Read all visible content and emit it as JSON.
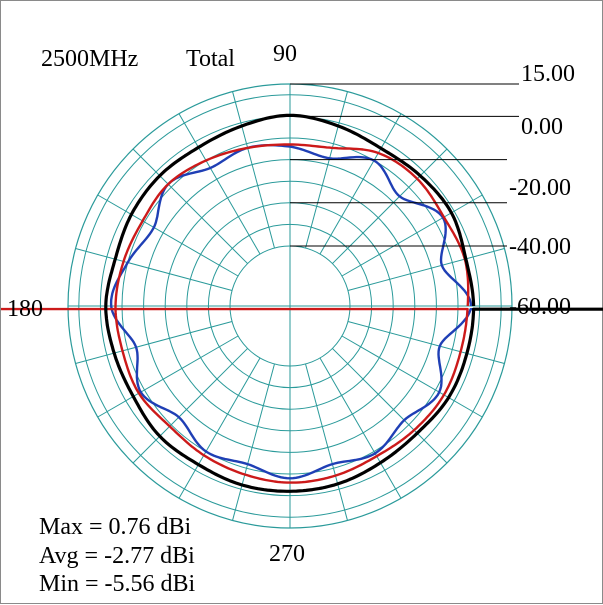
{
  "chart_data": {
    "type": "polar-line",
    "title": "2500MHz",
    "subtitle": "Total",
    "angle_labels": [
      {
        "angle": 90,
        "text": "90"
      },
      {
        "angle": 180,
        "text": "180"
      },
      {
        "angle": 270,
        "text": "270"
      }
    ],
    "radial_range": [
      -60,
      15
    ],
    "radial_ticks": [
      {
        "value": 15,
        "text": "15.00"
      },
      {
        "value": 0,
        "text": "0.00"
      },
      {
        "value": -20,
        "text": "-20.00"
      },
      {
        "value": -40,
        "text": "-40.00"
      },
      {
        "value": -60,
        "text": "-60.00"
      }
    ],
    "grid": {
      "rings": [
        -60,
        -50,
        -40,
        -30,
        -20,
        -10,
        0,
        10
      ],
      "spoke_step_deg": 15,
      "color": "#2a9a9a"
    },
    "series": [
      {
        "color": "#000000",
        "angles_deg": [
          0,
          15,
          30,
          45,
          60,
          75,
          90,
          105,
          120,
          135,
          150,
          165,
          180,
          195,
          210,
          225,
          240,
          255,
          270,
          285,
          300,
          315,
          330,
          345
        ],
        "values": [
          -2.8,
          -3.5,
          -1.5,
          -2.5,
          -3.5,
          -1.5,
          0.5,
          -1.5,
          -3.0,
          -2.5,
          -3.0,
          -4.0,
          -2.5,
          -3.5,
          -4.0,
          -2.5,
          -3.0,
          -2.0,
          -2.0,
          -2.5,
          -4.0,
          -4.5,
          -3.0,
          -3.0
        ]
      },
      {
        "color": "#cc1a1a",
        "angles_deg": [
          0,
          15,
          30,
          45,
          60,
          75,
          90,
          105,
          120,
          135,
          150,
          165,
          180,
          195,
          210,
          225,
          240,
          255,
          270,
          285,
          300,
          315,
          330,
          345
        ],
        "values": [
          -5.5,
          -4.0,
          -5.5,
          -4.5,
          -6.0,
          -12.0,
          -13.0,
          -12.0,
          -10.0,
          -8.0,
          -9.0,
          -8.0,
          -7.0,
          -7.5,
          -7.0,
          -9.0,
          -8.0,
          -7.0,
          -6.0,
          -6.5,
          -7.5,
          -6.5,
          -5.5,
          -6.0
        ]
      },
      {
        "color": "#1f3fb5",
        "angles_deg": [
          0,
          15,
          30,
          45,
          60,
          75,
          90,
          105,
          120,
          135,
          150,
          165,
          180,
          195,
          210,
          225,
          240,
          255,
          270,
          285,
          300,
          315,
          330,
          345
        ],
        "values": [
          -4.0,
          -15.0,
          -6.0,
          -16.0,
          -10.0,
          -17.0,
          -14.0,
          -12.0,
          -14.0,
          -8.0,
          -15.0,
          -10.0,
          -5.0,
          -14.0,
          -8.0,
          -15.0,
          -10.0,
          -12.0,
          -8.0,
          -12.0,
          -9.0,
          -13.0,
          -8.0,
          -16.0
        ]
      }
    ]
  },
  "stats": {
    "max": {
      "text": "Max = 0.76 dBi",
      "color": "#cc1a1a"
    },
    "avg": {
      "text": "Avg =  -2.77 dBi",
      "color": "#000000"
    },
    "min": {
      "text": "Min =  -5.56 dBi",
      "color": "#000000"
    }
  }
}
